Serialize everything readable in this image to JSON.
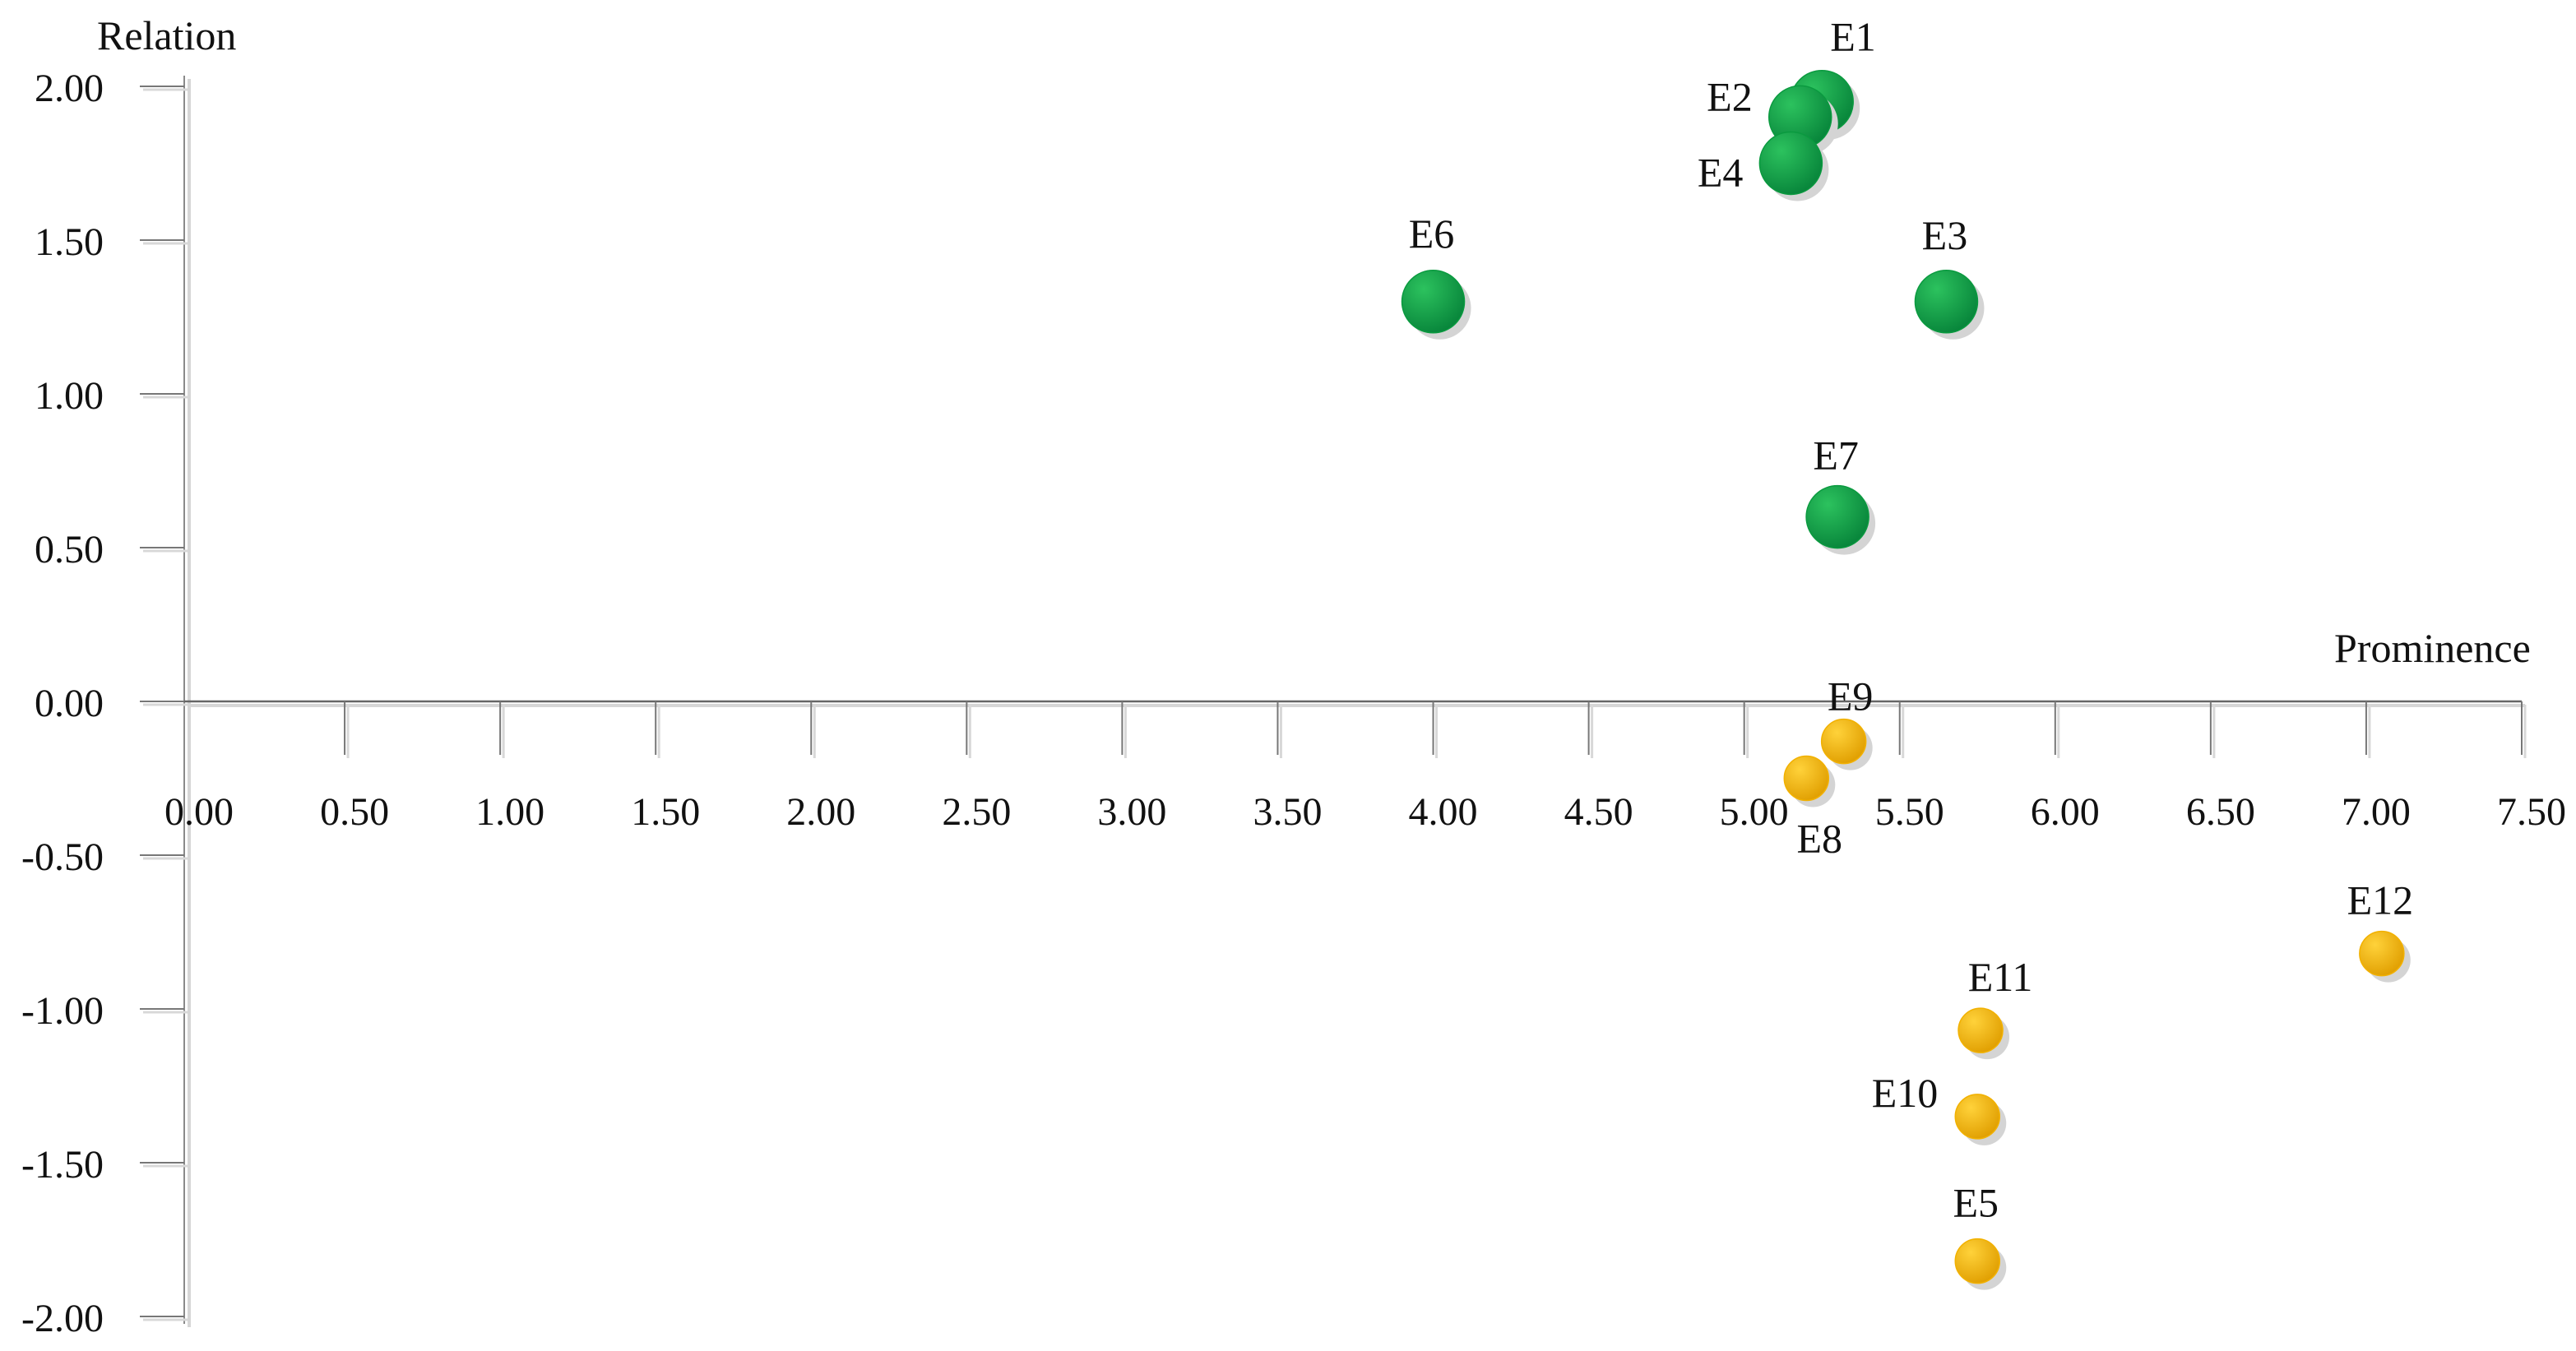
{
  "chart_data": {
    "type": "scatter",
    "xlabel": "Prominence",
    "ylabel": "Relation",
    "xlim": [
      0,
      7.5
    ],
    "ylim": [
      -2,
      2
    ],
    "x_ticks": [
      "0.00",
      "0.50",
      "1.00",
      "1.50",
      "2.00",
      "2.50",
      "3.00",
      "3.50",
      "4.00",
      "4.50",
      "5.00",
      "5.50",
      "6.00",
      "6.50",
      "7.00",
      "7.50"
    ],
    "y_ticks": [
      "2.00",
      "1.50",
      "1.00",
      "0.50",
      "0.00",
      "-0.50",
      "-1.00",
      "-1.50",
      "-2.00"
    ],
    "grid": false,
    "series": [
      {
        "color": "#0a9a3f",
        "points": [
          {
            "label": "E1",
            "x": 5.25,
            "y": 1.95
          },
          {
            "label": "E2",
            "x": 5.18,
            "y": 1.9
          },
          {
            "label": "E4",
            "x": 5.15,
            "y": 1.75
          },
          {
            "label": "E3",
            "x": 5.65,
            "y": 1.3
          },
          {
            "label": "E6",
            "x": 4.0,
            "y": 1.3
          },
          {
            "label": "E7",
            "x": 5.3,
            "y": 0.6
          }
        ]
      },
      {
        "color": "#f2b100",
        "points": [
          {
            "label": "E9",
            "x": 5.32,
            "y": -0.13
          },
          {
            "label": "E8",
            "x": 5.2,
            "y": -0.25
          },
          {
            "label": "E12",
            "x": 7.05,
            "y": -0.82
          },
          {
            "label": "E11",
            "x": 5.76,
            "y": -1.07
          },
          {
            "label": "E10",
            "x": 5.75,
            "y": -1.35
          },
          {
            "label": "E5",
            "x": 5.75,
            "y": -1.82
          }
        ]
      }
    ]
  }
}
